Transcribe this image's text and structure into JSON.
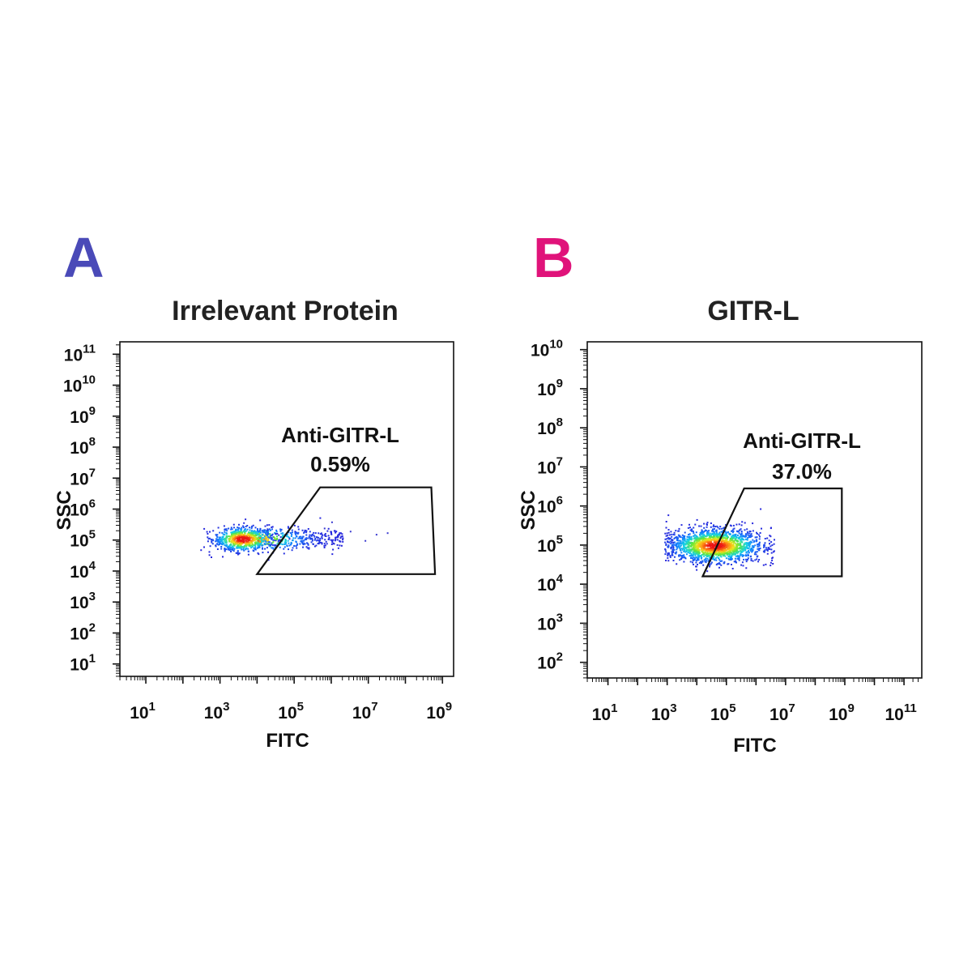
{
  "chart_data": [
    {
      "type": "scatter",
      "panel_label": "A",
      "panel_label_color": "#4a4ab8",
      "title": "Irrelevant Protein",
      "xlabel": "FITC",
      "ylabel": "SSC",
      "x_log_range": [
        0.3,
        9.3
      ],
      "y_log_range": [
        0.6,
        11.4
      ],
      "x_ticks": [
        1,
        3,
        5,
        7,
        9
      ],
      "y_ticks": [
        1,
        2,
        3,
        4,
        5,
        6,
        7,
        8,
        9,
        10,
        11
      ],
      "gate": {
        "name": "Anti-GITR-L",
        "percent": "0.59%",
        "vertices_log": [
          [
            4.0,
            3.9
          ],
          [
            5.7,
            6.7
          ],
          [
            8.7,
            6.7
          ],
          [
            8.8,
            3.9
          ]
        ]
      },
      "population": {
        "center_log": [
          3.6,
          5.05
        ],
        "sd_log": [
          0.4,
          0.2
        ],
        "tail_x_to": 6.3,
        "scatter_events": [
          [
            5.8,
            5.4
          ],
          [
            6.2,
            5.2
          ],
          [
            6.5,
            5.3
          ],
          [
            6.9,
            5.0
          ],
          [
            7.2,
            5.2
          ],
          [
            7.5,
            5.25
          ],
          [
            6.0,
            5.6
          ]
        ]
      }
    },
    {
      "type": "scatter",
      "panel_label": "B",
      "panel_label_color": "#e0137a",
      "title": "GITR-L",
      "xlabel": "FITC",
      "ylabel": "SSC",
      "x_log_range": [
        0.3,
        11.6
      ],
      "y_log_range": [
        1.6,
        10.2
      ],
      "x_ticks": [
        1,
        3,
        5,
        7,
        9,
        11
      ],
      "y_ticks": [
        2,
        3,
        4,
        5,
        6,
        7,
        8,
        9,
        10
      ],
      "gate": {
        "name": "Anti-GITR-L",
        "percent": "37.0%",
        "vertices_log": [
          [
            4.2,
            4.2
          ],
          [
            5.6,
            6.45
          ],
          [
            8.9,
            6.45
          ],
          [
            8.9,
            4.2
          ]
        ]
      },
      "population": {
        "center_log": [
          4.6,
          5.0
        ],
        "sd_log": [
          0.8,
          0.22
        ],
        "tail_x_to": 6.6,
        "scatter_events": []
      }
    }
  ]
}
